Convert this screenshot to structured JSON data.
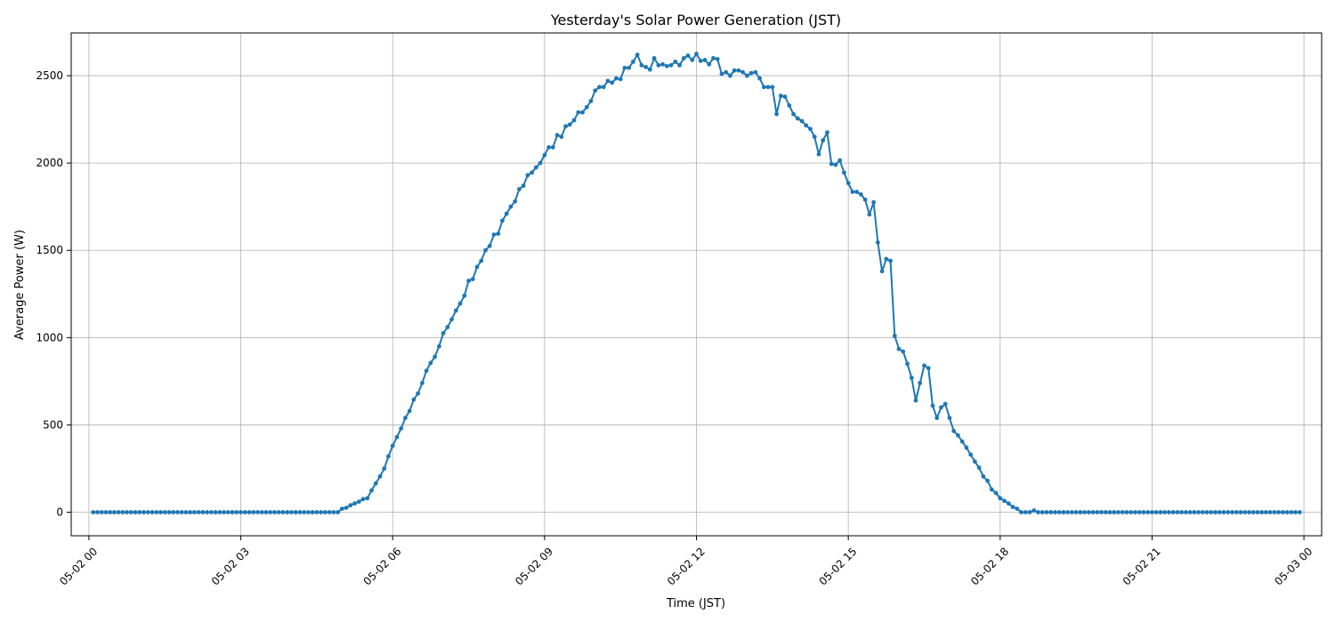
{
  "chart_data": {
    "type": "line",
    "title": "Yesterday's Solar Power Generation (JST)",
    "xlabel": "Time (JST)",
    "ylabel": "Average Power (W)",
    "x_unit": "hours since 05-02 00:00 JST",
    "xlim": [
      -0.35,
      24.35
    ],
    "ylim": [
      -135,
      2745
    ],
    "x_ticks": [
      {
        "value": 0,
        "label": "05-02 00"
      },
      {
        "value": 3,
        "label": "05-02 03"
      },
      {
        "value": 6,
        "label": "05-02 06"
      },
      {
        "value": 9,
        "label": "05-02 09"
      },
      {
        "value": 12,
        "label": "05-02 12"
      },
      {
        "value": 15,
        "label": "05-02 15"
      },
      {
        "value": 18,
        "label": "05-02 18"
      },
      {
        "value": 21,
        "label": "05-02 21"
      },
      {
        "value": 24,
        "label": "05-03 00"
      }
    ],
    "y_ticks": [
      0,
      500,
      1000,
      1500,
      2000,
      2500
    ],
    "grid": true,
    "colors": {
      "series": "#1f77b4"
    },
    "interval_minutes": 5,
    "series": [
      {
        "name": "",
        "x_start": 0.083333,
        "values": [
          0,
          0,
          0,
          0,
          0,
          0,
          0,
          0,
          0,
          0,
          0,
          0,
          0,
          0,
          0,
          0,
          0,
          0,
          0,
          0,
          0,
          0,
          0,
          0,
          0,
          0,
          0,
          0,
          0,
          0,
          0,
          0,
          0,
          0,
          0,
          0,
          0,
          0,
          0,
          0,
          0,
          0,
          0,
          0,
          0,
          0,
          0,
          0,
          0,
          0,
          0,
          0,
          0,
          0,
          0,
          0,
          0,
          0,
          0,
          20,
          25,
          40,
          50,
          60,
          75,
          80,
          125,
          165,
          205,
          250,
          320,
          380,
          430,
          480,
          540,
          580,
          645,
          680,
          740,
          810,
          855,
          890,
          950,
          1025,
          1060,
          1105,
          1155,
          1195,
          1240,
          1325,
          1335,
          1405,
          1440,
          1500,
          1525,
          1590,
          1595,
          1670,
          1710,
          1750,
          1780,
          1850,
          1870,
          1930,
          1945,
          1975,
          2000,
          2045,
          2090,
          2090,
          2160,
          2150,
          2210,
          2220,
          2245,
          2290,
          2290,
          2320,
          2355,
          2415,
          2435,
          2435,
          2470,
          2460,
          2485,
          2480,
          2545,
          2545,
          2580,
          2620,
          2560,
          2550,
          2535,
          2600,
          2560,
          2565,
          2555,
          2560,
          2580,
          2560,
          2600,
          2615,
          2590,
          2625,
          2585,
          2590,
          2565,
          2600,
          2595,
          2510,
          2520,
          2500,
          2530,
          2530,
          2520,
          2500,
          2515,
          2520,
          2485,
          2435,
          2435,
          2435,
          2280,
          2385,
          2380,
          2330,
          2280,
          2255,
          2240,
          2215,
          2195,
          2150,
          2050,
          2130,
          2175,
          1995,
          1990,
          2015,
          1945,
          1885,
          1835,
          1835,
          1820,
          1790,
          1705,
          1775,
          1545,
          1380,
          1450,
          1440,
          1010,
          935,
          920,
          850,
          770,
          640,
          740,
          840,
          825,
          610,
          540,
          600,
          620,
          540,
          465,
          440,
          405,
          370,
          330,
          290,
          255,
          205,
          180,
          130,
          110,
          80,
          65,
          50,
          30,
          20,
          0,
          0,
          0,
          10,
          0,
          0,
          0,
          0,
          0,
          0,
          0,
          0,
          0,
          0,
          0,
          0,
          0,
          0,
          0,
          0,
          0,
          0,
          0,
          0,
          0,
          0,
          0,
          0,
          0,
          0,
          0,
          0,
          0,
          0,
          0,
          0,
          0,
          0,
          0,
          0,
          0,
          0,
          0,
          0,
          0,
          0,
          0,
          0,
          0,
          0,
          0,
          0,
          0,
          0,
          0,
          0,
          0,
          0,
          0,
          0,
          0,
          0,
          0,
          0,
          0,
          0,
          0
        ]
      }
    ]
  }
}
